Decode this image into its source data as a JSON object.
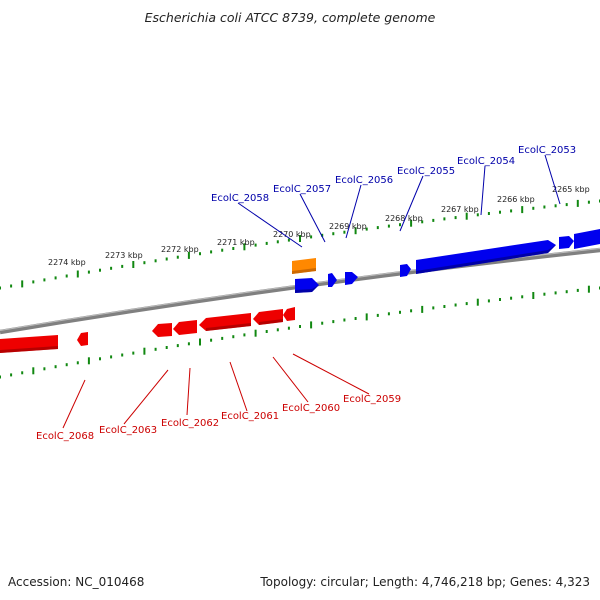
{
  "title": "Escherichia coli ATCC 8739, complete genome",
  "footer": {
    "accession": "Accession: NC_010468",
    "topology": "Topology: circular; Length: 4,746,218 bp; Genes: 4,323"
  },
  "colors": {
    "forward": "#0000ee",
    "reverse": "#ee0000",
    "rna": "#ff8800",
    "backbone": "#808080",
    "ticks": "#118811",
    "forward_label": "#0000aa",
    "reverse_label": "#cc0000"
  },
  "scale_labels": [
    "2274 kbp",
    "2273 kbp",
    "2272 kbp",
    "2271 kbp",
    "2270 kbp",
    "2269 kbp",
    "2268 kbp",
    "2267 kbp",
    "2266 kbp",
    "2265 kbp"
  ],
  "genes": [
    {
      "id": "EcolC_2053",
      "strand": "forward"
    },
    {
      "id": "EcolC_2054",
      "strand": "forward"
    },
    {
      "id": "EcolC_2055",
      "strand": "forward"
    },
    {
      "id": "EcolC_2056",
      "strand": "forward"
    },
    {
      "id": "EcolC_2057",
      "strand": "forward"
    },
    {
      "id": "EcolC_2058",
      "strand": "forward"
    },
    {
      "id": "EcolC_2059",
      "strand": "reverse"
    },
    {
      "id": "EcolC_2060",
      "strand": "reverse"
    },
    {
      "id": "EcolC_2061",
      "strand": "reverse"
    },
    {
      "id": "EcolC_2062",
      "strand": "reverse"
    },
    {
      "id": "EcolC_2063",
      "strand": "reverse"
    },
    {
      "id": "EcolC_2068",
      "strand": "reverse"
    }
  ]
}
